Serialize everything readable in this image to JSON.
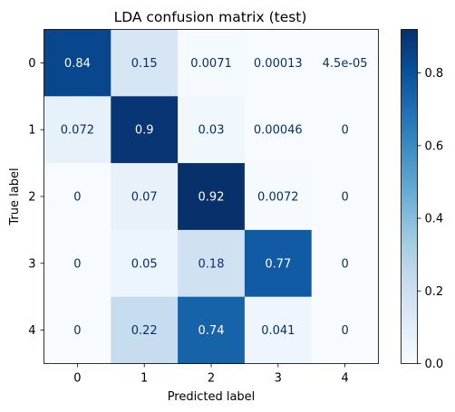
{
  "chart_data": {
    "type": "heatmap",
    "title": "LDA confusion matrix (test)",
    "xlabel": "Predicted label",
    "ylabel": "True label",
    "x_categories": [
      "0",
      "1",
      "2",
      "3",
      "4"
    ],
    "y_categories": [
      "0",
      "1",
      "2",
      "3",
      "4"
    ],
    "values": [
      [
        0.84,
        0.15,
        0.0071,
        0.00013,
        4.5e-05
      ],
      [
        0.072,
        0.9,
        0.03,
        0.00046,
        0
      ],
      [
        0,
        0.07,
        0.92,
        0.0072,
        0
      ],
      [
        0,
        0.05,
        0.18,
        0.77,
        0
      ],
      [
        0,
        0.22,
        0.74,
        0.041,
        0
      ]
    ],
    "cell_labels": [
      [
        "0.84",
        "0.15",
        "0.0071",
        "0.00013",
        "4.5e-05"
      ],
      [
        "0.072",
        "0.9",
        "0.03",
        "0.00046",
        "0"
      ],
      [
        "0",
        "0.07",
        "0.92",
        "0.0072",
        "0"
      ],
      [
        "0",
        "0.05",
        "0.18",
        "0.77",
        "0"
      ],
      [
        "0",
        "0.22",
        "0.74",
        "0.041",
        "0"
      ]
    ],
    "colormap": "Blues",
    "colorbar": {
      "range": [
        0,
        0.92
      ],
      "ticks": [
        0.0,
        0.2,
        0.4,
        0.6,
        0.8
      ],
      "tick_labels": [
        "0.0",
        "0.2",
        "0.4",
        "0.6",
        "0.8"
      ]
    },
    "text_colors": {
      "light": "#ffffff",
      "dark": "#08306b"
    },
    "grid": false
  }
}
